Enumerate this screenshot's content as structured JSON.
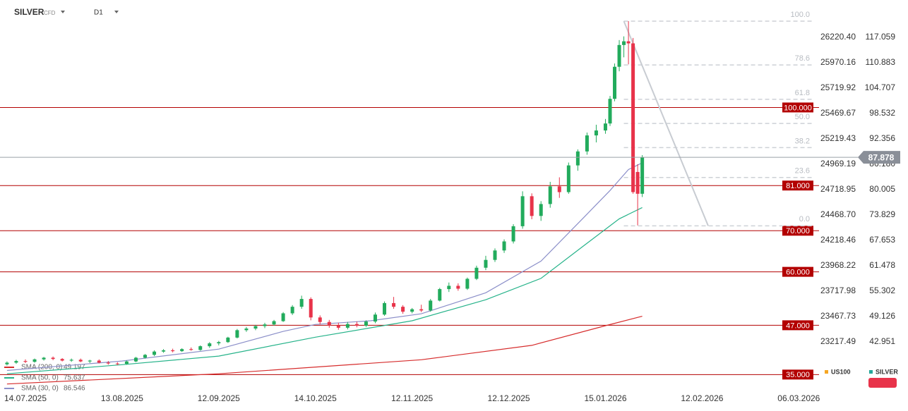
{
  "chart_data": {
    "type": "candlestick",
    "title": "SILVER",
    "subtitle": "CFD",
    "timeframe": "D1",
    "colors": {
      "up": "#22ab5c",
      "down": "#e8334a"
    },
    "xlim": [
      -5.52,
      172.4
    ],
    "xticks": [
      {
        "value": 0,
        "label": "14.07.2025"
      },
      {
        "value": 21,
        "label": "13.08.2025"
      },
      {
        "value": 42,
        "label": "12.09.2025"
      },
      {
        "value": 63,
        "label": "14.10.2025"
      },
      {
        "value": 84,
        "label": "12.11.2025"
      },
      {
        "value": 105,
        "label": "12.12.2025"
      },
      {
        "value": 126,
        "label": "15.01.2026"
      },
      {
        "value": 147,
        "label": "12.02.2026"
      },
      {
        "value": 168,
        "label": "06.03.2026"
      }
    ],
    "ylim": [
      30.08,
      126.152
    ],
    "yticks": [
      117.059,
      110.883,
      104.707,
      98.532,
      92.356,
      {
        "value": 86.18,
        "label": "86.180"
      },
      80.005,
      73.829,
      67.653,
      61.478,
      55.302,
      49.126,
      42.951
    ],
    "y2lim": [
      22696.2,
      26588.8
    ],
    "y2ticks": [
      {
        "value": 26220.4,
        "label": "26220.40"
      },
      25970.16,
      25719.92,
      25469.67,
      25219.43,
      24969.19,
      24718.95,
      {
        "value": 24468.7,
        "label": "24468.70"
      },
      24218.46,
      23968.22,
      23717.98,
      23467.73,
      23217.49
    ],
    "candles": [
      [
        -4,
        37.5,
        38.2,
        37.2,
        37.9
      ],
      [
        -2,
        37.9,
        38.6,
        37.6,
        38.3
      ],
      [
        0,
        38.3,
        38.7,
        37.8,
        38.1
      ],
      [
        2,
        38.1,
        38.9,
        37.9,
        38.7
      ],
      [
        4,
        38.7,
        39.3,
        38.4,
        39.1
      ],
      [
        6,
        39.1,
        39.4,
        38.5,
        38.8
      ],
      [
        8,
        38.8,
        39.0,
        38.2,
        38.4
      ],
      [
        10,
        38.4,
        38.9,
        38.1,
        38.6
      ],
      [
        12,
        38.6,
        38.9,
        38.0,
        38.2
      ],
      [
        14,
        38.2,
        38.6,
        37.8,
        38.4
      ],
      [
        16,
        38.4,
        38.7,
        37.7,
        37.9
      ],
      [
        18,
        37.9,
        38.3,
        37.4,
        37.7
      ],
      [
        20,
        37.7,
        38.0,
        37.3,
        37.6
      ],
      [
        22,
        37.6,
        38.4,
        37.4,
        38.2
      ],
      [
        24,
        38.2,
        39.3,
        38.0,
        39.1
      ],
      [
        26,
        39.1,
        40.0,
        38.9,
        39.8
      ],
      [
        28,
        39.8,
        40.9,
        39.5,
        40.6
      ],
      [
        30,
        40.6,
        41.2,
        40.3,
        40.9
      ],
      [
        32,
        40.9,
        41.3,
        40.4,
        40.7
      ],
      [
        34,
        40.7,
        41.4,
        40.5,
        41.2
      ],
      [
        36,
        41.2,
        41.6,
        40.8,
        41.0
      ],
      [
        38,
        41.0,
        42.1,
        40.8,
        41.9
      ],
      [
        40,
        41.9,
        42.9,
        41.5,
        42.6
      ],
      [
        42,
        42.6,
        43.2,
        42.1,
        42.9
      ],
      [
        44,
        42.9,
        44.2,
        42.7,
        44.0
      ],
      [
        46,
        44.0,
        46.1,
        43.8,
        45.8
      ],
      [
        48,
        45.8,
        46.6,
        45.4,
        46.2
      ],
      [
        50,
        46.2,
        47.1,
        45.8,
        46.8
      ],
      [
        52,
        46.8,
        47.6,
        46.3,
        47.2
      ],
      [
        54,
        47.2,
        48.3,
        46.9,
        48.0
      ],
      [
        56,
        48.0,
        50.2,
        47.8,
        49.9
      ],
      [
        58,
        49.9,
        51.9,
        49.5,
        51.5
      ],
      [
        60,
        51.5,
        54.2,
        51.0,
        53.4
      ],
      [
        62,
        53.4,
        53.8,
        48.2,
        48.9
      ],
      [
        64,
        48.9,
        49.4,
        47.2,
        47.8
      ],
      [
        66,
        47.8,
        48.3,
        46.4,
        47.0
      ],
      [
        68,
        47.0,
        47.6,
        45.9,
        46.4
      ],
      [
        70,
        46.4,
        47.8,
        46.0,
        47.3
      ],
      [
        72,
        47.3,
        47.9,
        46.5,
        46.9
      ],
      [
        74,
        46.9,
        48.2,
        46.6,
        47.9
      ],
      [
        76,
        47.9,
        50.1,
        47.5,
        49.6
      ],
      [
        78,
        49.6,
        52.8,
        49.3,
        52.4
      ],
      [
        80,
        52.4,
        53.9,
        51.0,
        51.5
      ],
      [
        82,
        51.5,
        51.9,
        49.8,
        50.3
      ],
      [
        84,
        50.3,
        51.2,
        49.9,
        50.9
      ],
      [
        86,
        50.9,
        52.0,
        50.2,
        50.6
      ],
      [
        88,
        50.6,
        53.4,
        50.3,
        53.0
      ],
      [
        90,
        53.0,
        56.1,
        52.8,
        55.8
      ],
      [
        92,
        55.8,
        57.4,
        55.1,
        56.6
      ],
      [
        94,
        56.6,
        57.2,
        55.4,
        55.9
      ],
      [
        96,
        55.9,
        58.6,
        55.6,
        58.3
      ],
      [
        98,
        58.3,
        61.5,
        58.0,
        61.0
      ],
      [
        100,
        61.0,
        63.9,
        60.4,
        62.9
      ],
      [
        102,
        62.9,
        65.7,
        62.4,
        65.2
      ],
      [
        104,
        65.2,
        67.9,
        64.6,
        67.4
      ],
      [
        106,
        67.4,
        71.6,
        66.9,
        71.1
      ],
      [
        108,
        71.1,
        79.6,
        70.5,
        78.4
      ],
      [
        110,
        78.4,
        79.1,
        72.8,
        73.6
      ],
      [
        112,
        73.6,
        77.2,
        72.4,
        76.5
      ],
      [
        114,
        76.5,
        81.9,
        75.6,
        80.8
      ],
      [
        116,
        80.8,
        83.0,
        78.0,
        79.4
      ],
      [
        118,
        79.4,
        86.6,
        79.0,
        85.9
      ],
      [
        120,
        85.9,
        89.8,
        84.6,
        89.3
      ],
      [
        122,
        89.3,
        93.9,
        88.5,
        93.2
      ],
      [
        124,
        93.2,
        95.8,
        91.5,
        94.4
      ],
      [
        126,
        94.4,
        97.2,
        93.6,
        96.1
      ],
      [
        127,
        96.1,
        102.8,
        95.5,
        102.1
      ],
      [
        128,
        102.1,
        110.7,
        101.5,
        109.9
      ],
      [
        129,
        109.9,
        116.4,
        108.8,
        115.2
      ],
      [
        130,
        115.2,
        117.3,
        112.2,
        116.1
      ],
      [
        131,
        116.1,
        121.0,
        110.5,
        115.6
      ],
      [
        132,
        115.6,
        116.9,
        79.0,
        79.4
      ],
      [
        133,
        84.3,
        86.2,
        71.3,
        79.0
      ],
      [
        134,
        79.0,
        88.4,
        78.2,
        87.878
      ]
    ],
    "sma": [
      {
        "name": "SMA (200, 0)",
        "value": 49.197,
        "color": "#d62c2c",
        "x": [
          -4,
          42,
          86,
          110,
          126,
          134
        ],
        "values": [
          32.7,
          35.2,
          38.6,
          42.1,
          46.9,
          49.197
        ]
      },
      {
        "name": "SMA (50, 0)",
        "value": 75.637,
        "color": "#26b38a",
        "x": [
          -4,
          21,
          42,
          63,
          84,
          100,
          112,
          121,
          129,
          134
        ],
        "values": [
          35.2,
          37.4,
          39.5,
          44.1,
          48.1,
          53.2,
          58.4,
          66.1,
          72.9,
          75.637
        ]
      },
      {
        "name": "SMA (30, 0)",
        "value": 86.546,
        "color": "#8b8fc9",
        "x": [
          -4,
          21,
          42,
          56,
          63,
          75,
          86,
          100,
          112,
          121,
          127,
          131,
          134
        ],
        "values": [
          36.0,
          38.3,
          41.2,
          45.5,
          47.2,
          48.1,
          49.8,
          54.9,
          62.6,
          72.9,
          79.8,
          84.9,
          86.546
        ]
      }
    ],
    "levels": [
      {
        "value": 100,
        "label": "100.000"
      },
      {
        "value": 81,
        "label": "81.000"
      },
      {
        "value": 70,
        "label": "70.000"
      },
      {
        "value": 60,
        "label": "60.000"
      },
      {
        "value": 47,
        "label": "47.000"
      },
      {
        "value": 35,
        "label": "35.000"
      }
    ],
    "level_color": "#b30000",
    "current_price": 87.878,
    "fib": {
      "high": 121.0,
      "low": 71.2,
      "levels": [
        {
          "value": 100,
          "label": "100.0"
        },
        {
          "value": 78.6,
          "label": "78.6"
        },
        {
          "value": 61.8,
          "label": "61.8"
        },
        {
          "value": 50,
          "label": "50.0"
        },
        {
          "value": 38.2,
          "label": "38.2"
        },
        {
          "value": 23.6,
          "label": "23.6"
        },
        {
          "value": 0,
          "label": "0.0"
        }
      ]
    },
    "compare": [
      {
        "name": "US100",
        "color": "#f5a623"
      },
      {
        "name": "SILVER",
        "color": "#26a69a"
      }
    ]
  }
}
